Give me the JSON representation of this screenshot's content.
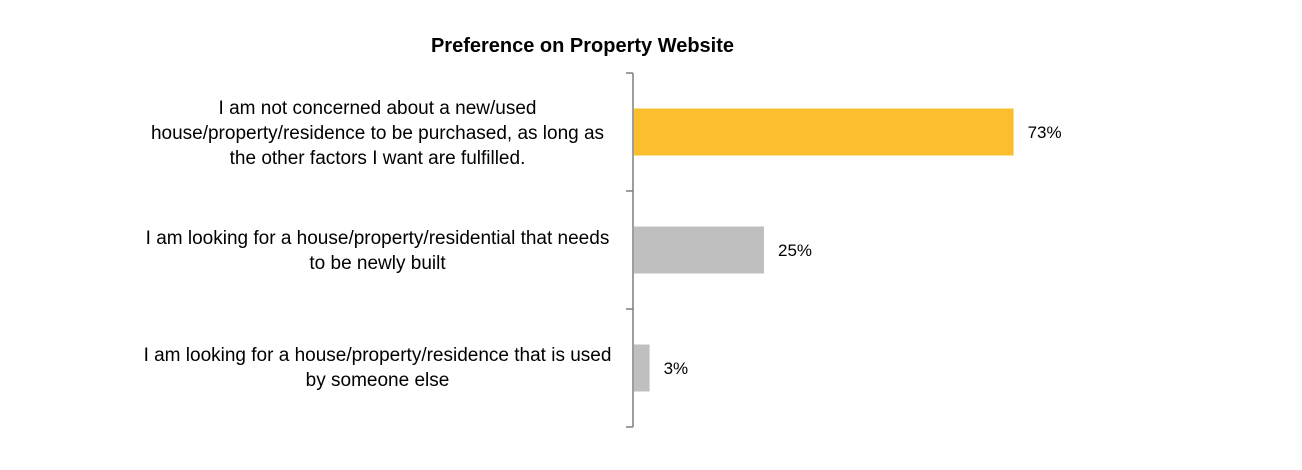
{
  "chart_data": {
    "type": "bar",
    "orientation": "horizontal",
    "title": "Preference on Property Website",
    "categories": [
      "I am not concerned about a new/used house/property/residence to be purchased, as long as the other factors I want are fulfilled.",
      "I am looking for a house/property/residential that needs to be newly built",
      "I am looking for a house/property/residence that is used by someone else"
    ],
    "values": [
      73,
      25,
      3
    ],
    "value_labels": [
      "73%",
      "25%",
      "3%"
    ],
    "value_unit": "%",
    "bar_colors": [
      "#FBBF2E",
      "#BFBFBF",
      "#BFBFBF"
    ],
    "xlim": [
      0,
      100
    ],
    "grid": false,
    "legend": "none"
  }
}
